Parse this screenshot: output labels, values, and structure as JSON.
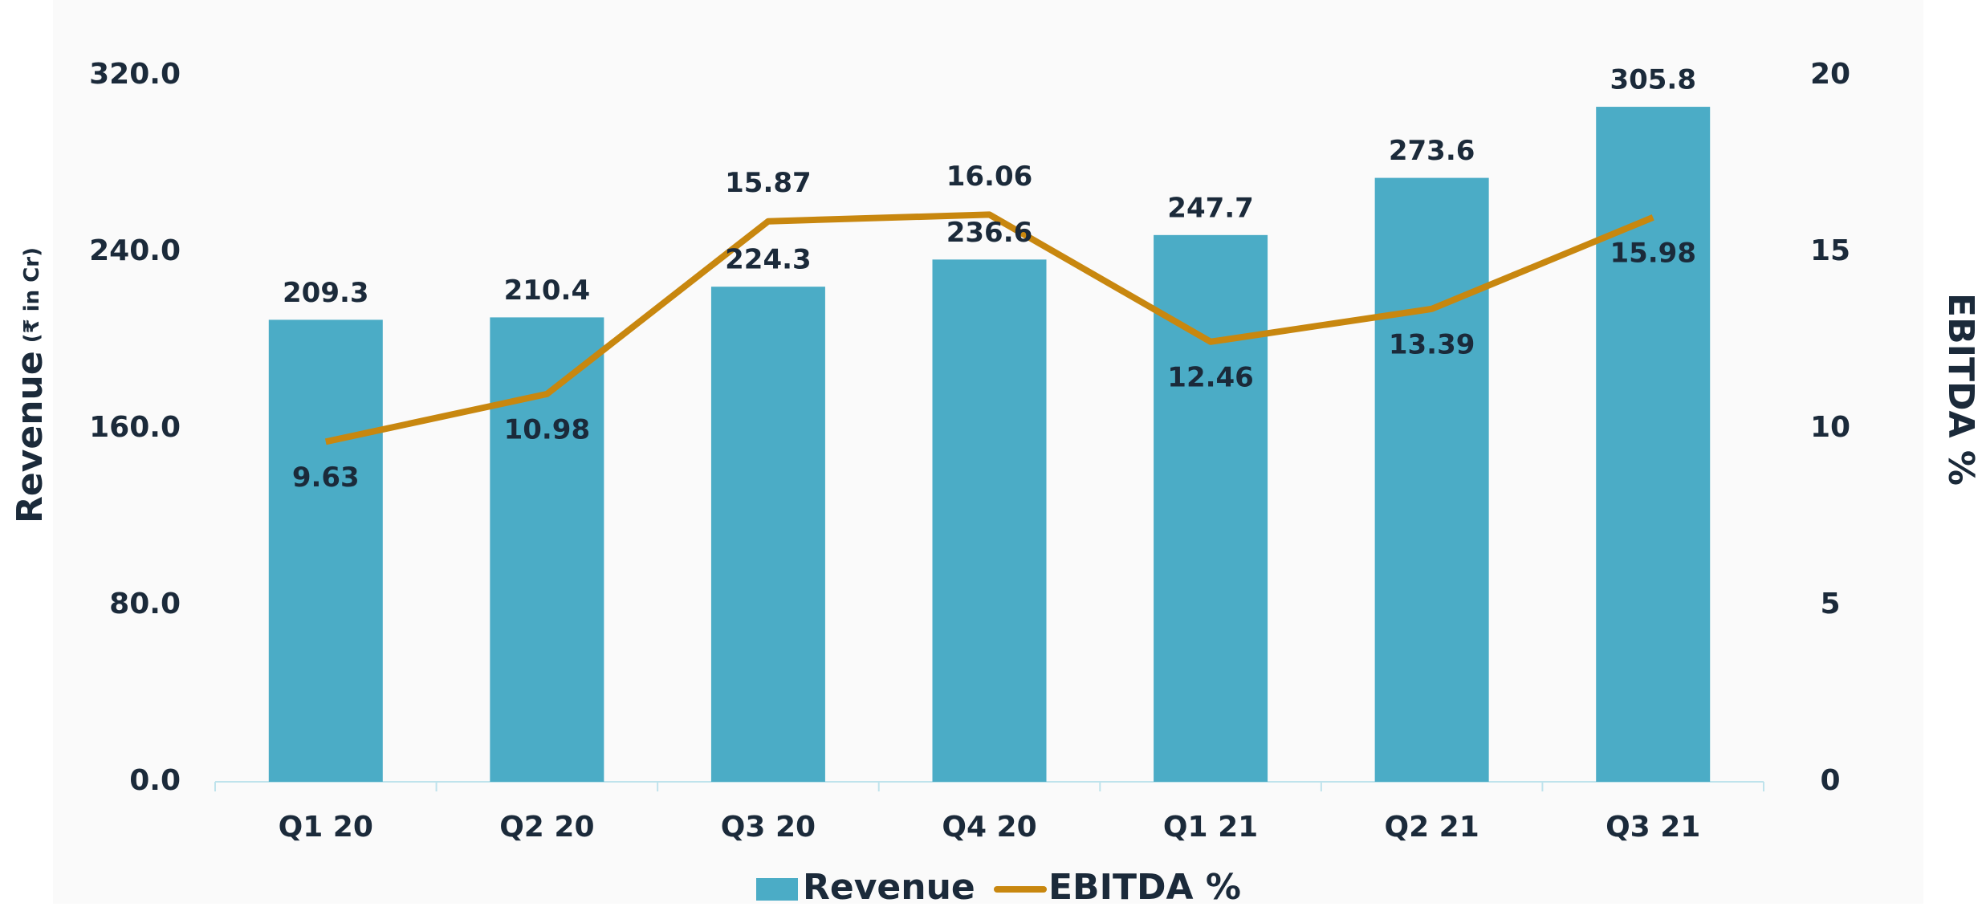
{
  "chart_data": {
    "type": "bar_line",
    "categories": [
      "Q1 20",
      "Q2 20",
      "Q3 20",
      "Q4 20",
      "Q1 21",
      "Q2 21",
      "Q3 21"
    ],
    "series": [
      {
        "name": "Revenue",
        "color": "#4bacc6",
        "values": [
          209.3,
          210.4,
          224.3,
          236.6,
          247.7,
          273.6,
          305.8
        ]
      },
      {
        "name": "EBITDA %",
        "color": "#c8870f",
        "axis": "y2",
        "values": [
          9.63,
          10.98,
          15.87,
          16.06,
          12.46,
          13.39,
          15.98
        ]
      }
    ],
    "ylabel": "Revenue",
    "ylabel_note": "(₹ in Cr)",
    "y2label": "EBITDA %",
    "ylim": [
      0,
      320
    ],
    "yticks": [
      {
        "value": 0,
        "label": "0.0"
      },
      {
        "value": 80,
        "label": "80.0"
      },
      {
        "value": 160,
        "label": "160.0"
      },
      {
        "value": 240,
        "label": "240.0"
      },
      {
        "value": 320,
        "label": "320.0"
      }
    ],
    "y2lim": [
      0,
      20
    ],
    "y2ticks": [
      0,
      5,
      10,
      15,
      20
    ],
    "legend": "bottom"
  }
}
